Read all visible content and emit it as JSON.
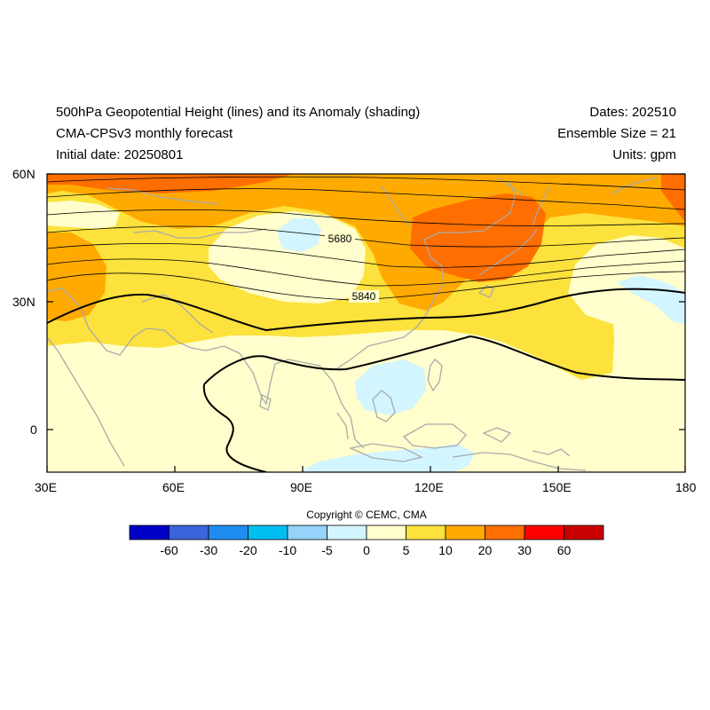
{
  "header": {
    "title_line1": "500hPa Geopotential Height (lines) and its Anomaly (shading)",
    "title_line2": "CMA-CPSv3 monthly forecast",
    "title_line3": "Initial date: 20250801",
    "dates": "Dates: 202510",
    "ensemble": "Ensemble Size = 21",
    "units": "Units: gpm"
  },
  "axes": {
    "lat_labels": [
      "60N",
      "30N",
      "0"
    ],
    "lon_labels": [
      "30E",
      "60E",
      "90E",
      "120E",
      "150E",
      "180"
    ],
    "lon_range": [
      30,
      180
    ],
    "lat_range": [
      -10,
      60
    ]
  },
  "contour_labels": [
    "5680",
    "5840"
  ],
  "copyright": "Copyright © CEMC, CMA",
  "colorbar": {
    "labels": [
      "-60",
      "-30",
      "-20",
      "-10",
      "-5",
      "0",
      "5",
      "10",
      "20",
      "30",
      "60"
    ],
    "colors": [
      "#0000c8",
      "#3c64dc",
      "#1e8cf0",
      "#00bef0",
      "#96d2fa",
      "#d2f5ff",
      "#fffecc",
      "#fde13c",
      "#ffaa00",
      "#ff6e00",
      "#ff0000",
      "#c80000"
    ]
  }
}
